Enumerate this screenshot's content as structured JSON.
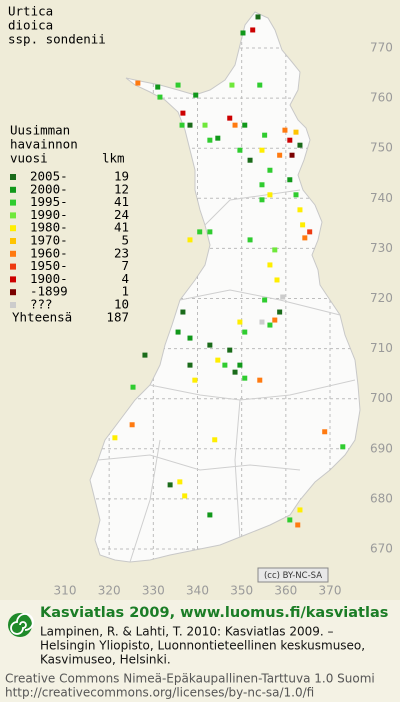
{
  "title": [
    "Urtica",
    "dioica",
    "ssp. sondenii"
  ],
  "legend": {
    "title": [
      "Uusimman",
      "havainnon",
      "vuosi"
    ],
    "count_header": "lkm",
    "entries": [
      {
        "label": "2005-",
        "count": 19,
        "color": "#1a6b1a"
      },
      {
        "label": "2000-",
        "count": 12,
        "color": "#11981a"
      },
      {
        "label": "1995-",
        "count": 41,
        "color": "#2fcc2f"
      },
      {
        "label": "1990-",
        "count": 24,
        "color": "#6fe83a"
      },
      {
        "label": "1980-",
        "count": 41,
        "color": "#ffee00"
      },
      {
        "label": "1970-",
        "count": 5,
        "color": "#ffc400"
      },
      {
        "label": "1960-",
        "count": 23,
        "color": "#ff7a10"
      },
      {
        "label": "1950-",
        "count": 7,
        "color": "#ee3a10"
      },
      {
        "label": "1900-",
        "count": 4,
        "color": "#cc0000"
      },
      {
        "label": "-1899",
        "count": 1,
        "color": "#7a0000"
      },
      {
        "label": "???",
        "count": 10,
        "color": "#cccccc"
      }
    ],
    "total_label": "Yhteensä",
    "total": 187
  },
  "map": {
    "x_labels": [
      310,
      320,
      330,
      340,
      350,
      360,
      370
    ],
    "y_labels": [
      670,
      680,
      690,
      700,
      710,
      720,
      730,
      740,
      750,
      760,
      770
    ],
    "observations": [
      [
        353.7,
        776.2,
        0
      ],
      [
        352.5,
        773.6,
        8
      ],
      [
        350.3,
        773,
        1
      ],
      [
        326.5,
        763,
        6
      ],
      [
        331,
        762.2,
        1
      ],
      [
        331.5,
        760.2,
        2
      ],
      [
        335.6,
        762.6,
        2
      ],
      [
        347.8,
        762.6,
        3
      ],
      [
        354.1,
        762.6,
        2
      ],
      [
        339.6,
        760.6,
        1
      ],
      [
        336.7,
        757,
        8
      ],
      [
        336.5,
        754.6,
        2
      ],
      [
        338.3,
        754.6,
        0
      ],
      [
        341.7,
        754.6,
        3
      ],
      [
        347.3,
        756,
        8
      ],
      [
        348.5,
        754.6,
        6
      ],
      [
        350.7,
        754.6,
        1
      ],
      [
        342.8,
        751.6,
        2
      ],
      [
        344.6,
        752,
        1
      ],
      [
        349.6,
        749.6,
        2
      ],
      [
        351.9,
        747.6,
        0
      ],
      [
        355.2,
        752.6,
        2
      ],
      [
        359.8,
        753.6,
        6
      ],
      [
        360.9,
        751.6,
        8
      ],
      [
        362.3,
        753.2,
        5
      ],
      [
        363.2,
        750.6,
        0
      ],
      [
        361.4,
        748.6,
        9
      ],
      [
        358.6,
        748.6,
        6
      ],
      [
        354.6,
        749.6,
        4
      ],
      [
        356.4,
        745.6,
        2
      ],
      [
        354.6,
        742.7,
        2
      ],
      [
        356.4,
        740.7,
        4
      ],
      [
        354.6,
        739.7,
        2
      ],
      [
        360.9,
        743.7,
        1
      ],
      [
        362.3,
        740.7,
        2
      ],
      [
        363.2,
        737.7,
        4
      ],
      [
        363.8,
        734.7,
        4
      ],
      [
        365.4,
        733.3,
        7
      ],
      [
        364.3,
        732.1,
        6
      ],
      [
        338.3,
        731.7,
        4
      ],
      [
        340.5,
        733.3,
        2
      ],
      [
        342.8,
        733.3,
        2
      ],
      [
        351.9,
        731.7,
        2
      ],
      [
        356.4,
        726.7,
        4
      ],
      [
        357.5,
        729.7,
        3
      ],
      [
        358,
        723.7,
        4
      ],
      [
        355.2,
        719.7,
        2
      ],
      [
        359.3,
        720.3,
        10
      ],
      [
        357.5,
        715.7,
        6
      ],
      [
        356.4,
        714.7,
        2
      ],
      [
        358.6,
        717.3,
        0
      ],
      [
        349.6,
        715.3,
        4
      ],
      [
        350.7,
        713.3,
        2
      ],
      [
        354.6,
        715.3,
        10
      ],
      [
        336.7,
        717.3,
        0
      ],
      [
        335.6,
        713.3,
        1
      ],
      [
        338.3,
        712.1,
        1
      ],
      [
        342.8,
        710.7,
        0
      ],
      [
        347.3,
        709.7,
        0
      ],
      [
        346.2,
        706.7,
        2
      ],
      [
        349.6,
        706.7,
        1
      ],
      [
        350.7,
        704.1,
        2
      ],
      [
        348.5,
        705.3,
        0
      ],
      [
        344.6,
        707.7,
        4
      ],
      [
        339.4,
        703.7,
        4
      ],
      [
        338.3,
        706.7,
        0
      ],
      [
        354.1,
        703.7,
        6
      ],
      [
        325.4,
        702.3,
        2
      ],
      [
        321.3,
        692.2,
        4
      ],
      [
        325.2,
        694.8,
        6
      ],
      [
        343.9,
        691.8,
        4
      ],
      [
        368.8,
        693.4,
        6
      ],
      [
        372.9,
        690.4,
        2
      ],
      [
        336,
        683.4,
        4
      ],
      [
        337.1,
        680.6,
        4
      ],
      [
        333.8,
        682.8,
        0
      ],
      [
        342.8,
        676.8,
        1
      ],
      [
        363.2,
        677.8,
        4
      ],
      [
        362.7,
        674.8,
        6
      ],
      [
        360.9,
        675.8,
        2
      ],
      [
        328.1,
        708.7,
        0
      ]
    ]
  },
  "badge": "(cc) BY-NC-SA",
  "footer": {
    "heading": "Kasviatlas 2009, www.luomus.fi/kasviatlas",
    "citation": [
      "Lampinen, R. & Lahti, T. 2010: Kasviatlas 2009. –",
      "Helsingin Yliopisto, Luonnontieteellinen keskusmuseo,",
      "Kasvimuseo, Helsinki."
    ],
    "license": [
      "Creative Commons Nimeä-Epäkaupallinen-Tarttuva 1.0 Suomi",
      "http://creativecommons.org/licenses/by-nc-sa/1.0/fi"
    ]
  }
}
